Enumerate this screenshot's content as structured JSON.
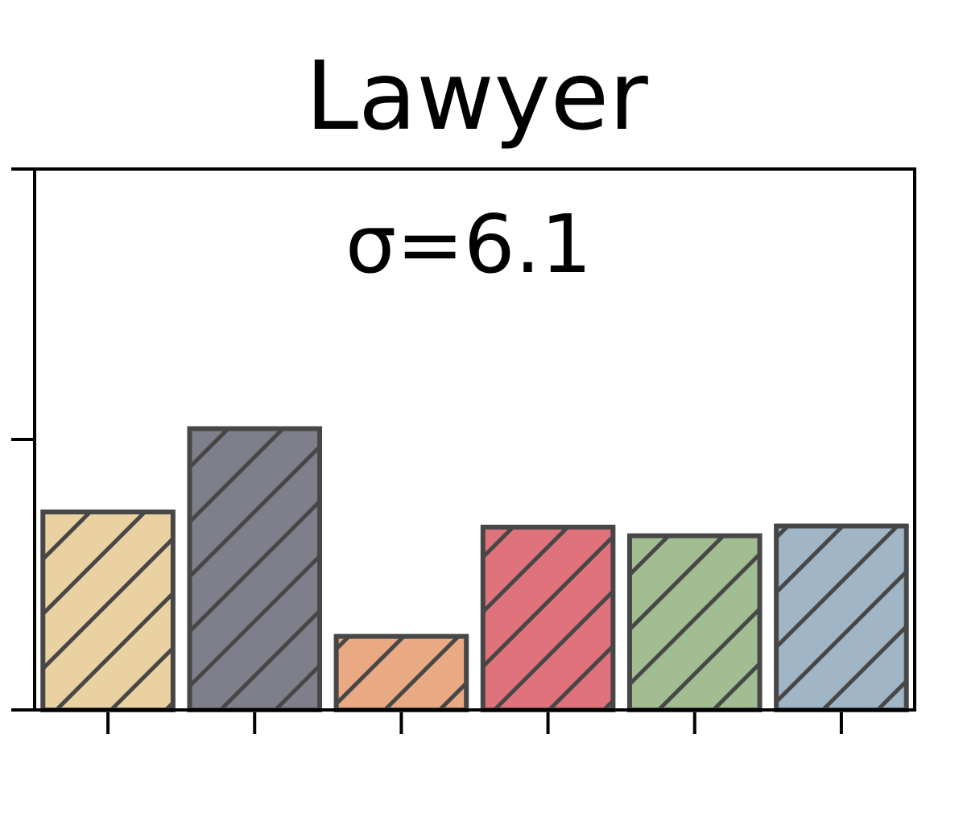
{
  "chart_data": {
    "type": "bar",
    "title": "Lawyer",
    "annotation": "σ=6.1",
    "categories": [
      null,
      null,
      null,
      null,
      null,
      null
    ],
    "values": [
      18.3,
      26.0,
      6.8,
      16.9,
      16.1,
      17.0
    ],
    "colors": [
      "#e9d1a1",
      "#7f7f8c",
      "#e9a982",
      "#e0727c",
      "#a1bd91",
      "#a0b5c5"
    ],
    "edgecolor": "#474747",
    "hatch": "/",
    "ylim": [
      0,
      50
    ],
    "yticks": [
      0,
      25,
      50
    ],
    "grid": false
  }
}
